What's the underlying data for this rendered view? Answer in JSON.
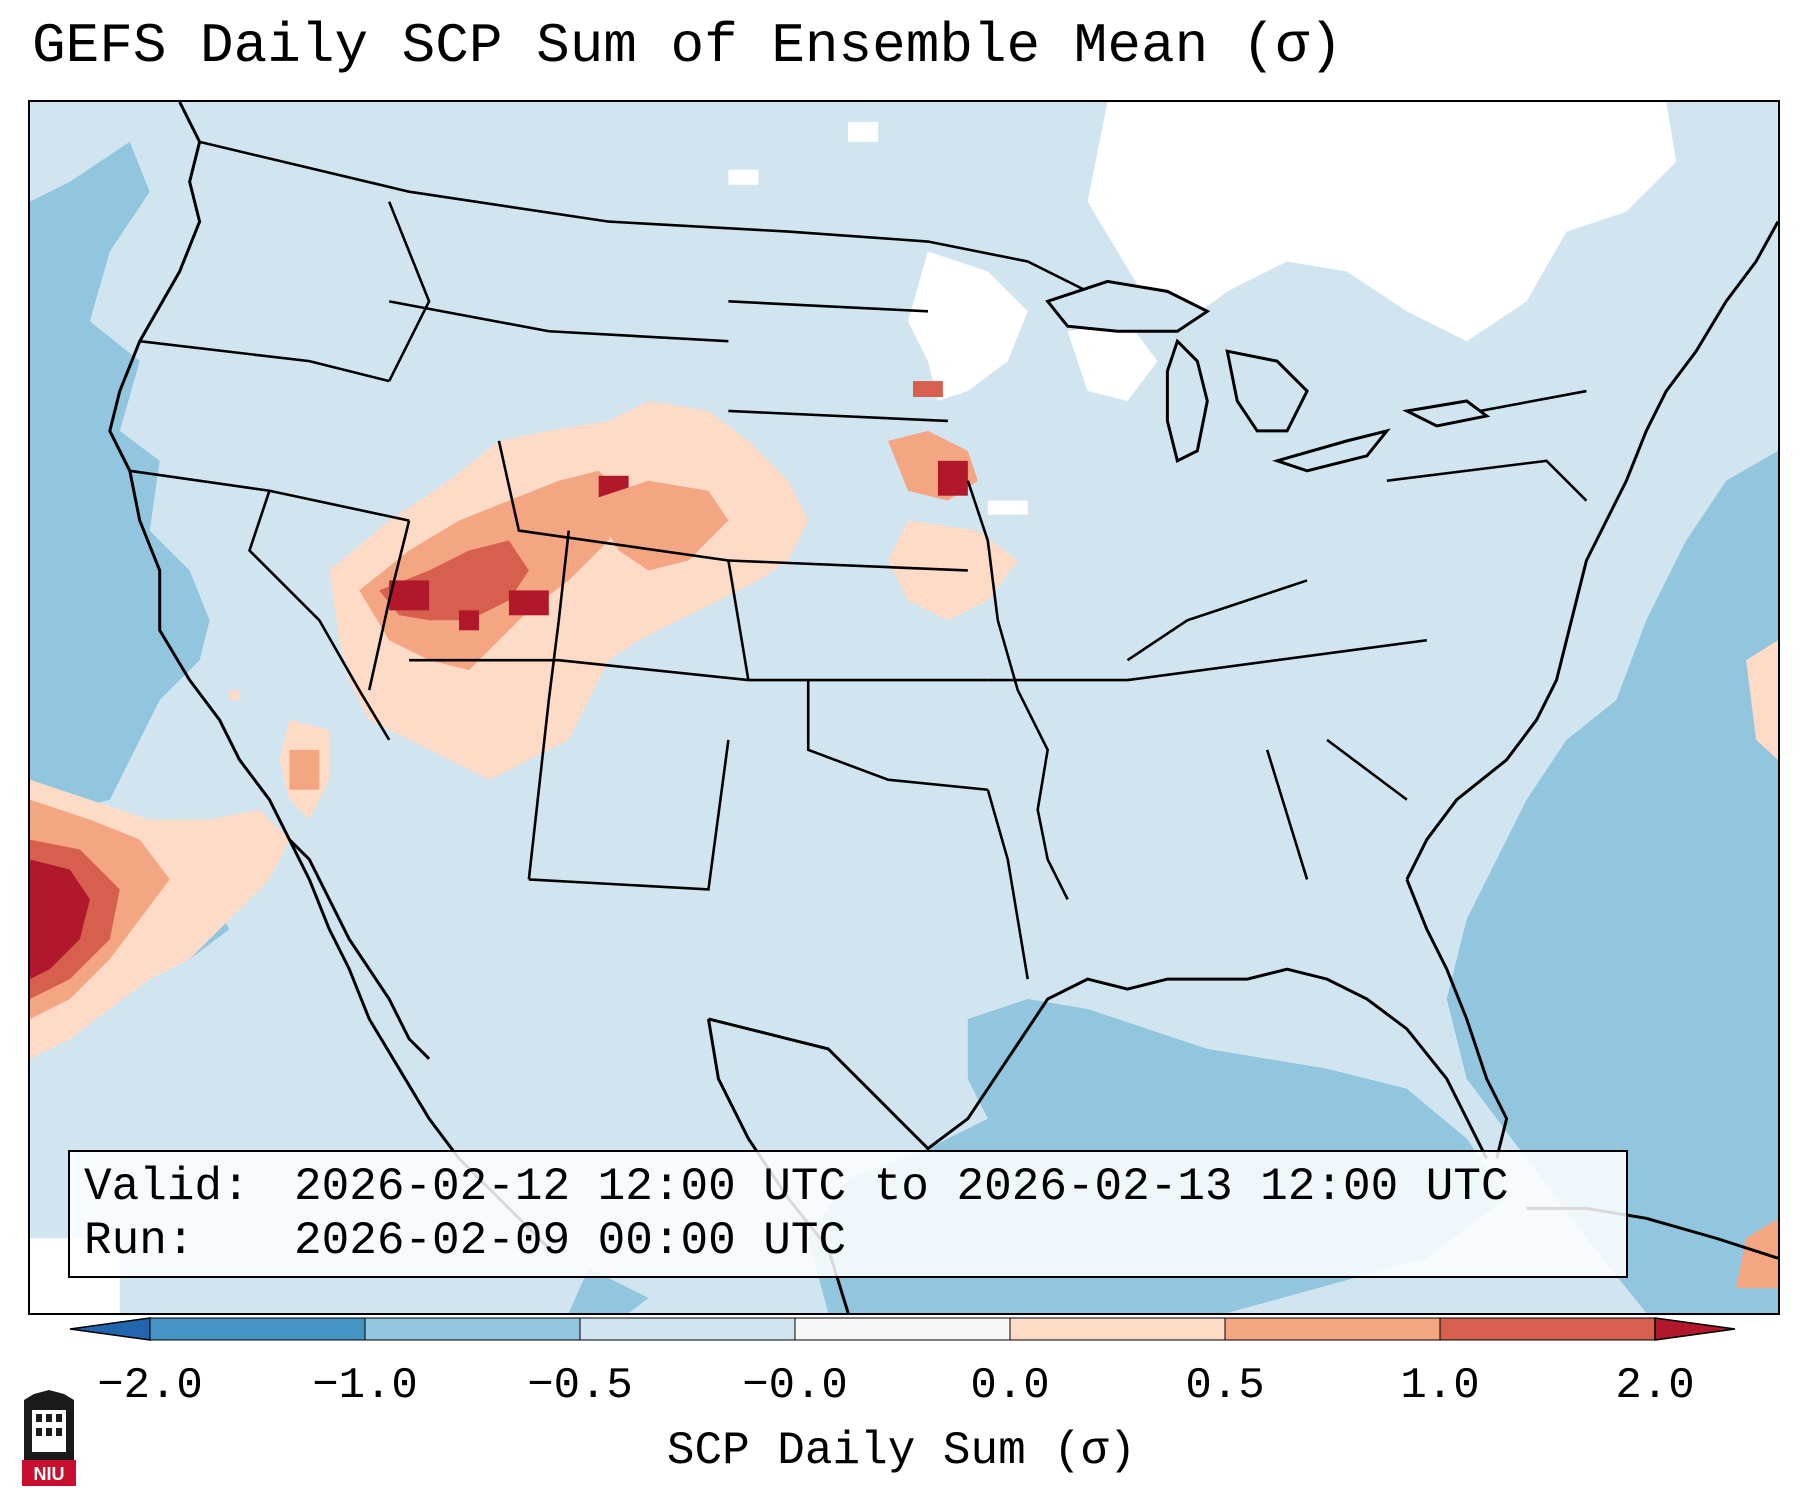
{
  "title": "GEFS Daily SCP Sum of Ensemble Mean (σ)",
  "info": {
    "valid_label": "Valid:",
    "valid_value": "2026-02-12 12:00 UTC to 2026-02-13 12:00 UTC",
    "run_label": "Run:",
    "run_value": "2026-02-09 00:00 UTC"
  },
  "colorbar": {
    "label": "SCP Daily Sum (σ)",
    "ticks": [
      "−2.0",
      "−1.0",
      "−0.5",
      "−0.0",
      "0.0",
      "0.5",
      "1.0",
      "2.0"
    ],
    "colors": [
      "#4393c3",
      "#92c5de",
      "#d1e5f0",
      "#f7f7f7",
      "#fddbc7",
      "#f4a582",
      "#d6604d"
    ],
    "extend_low_color": "#2166ac",
    "extend_high_color": "#b2182b"
  },
  "logo": {
    "text": "NIU"
  },
  "map_colors": {
    "ocean_deep": "#92c5de",
    "land_base": "#d1e5f0",
    "near_zero": "#ffffff",
    "pos_low": "#fddbc7",
    "pos_mid": "#f4a582",
    "pos_high": "#d6604d",
    "pos_max": "#b2182b",
    "border": "#000000"
  }
}
